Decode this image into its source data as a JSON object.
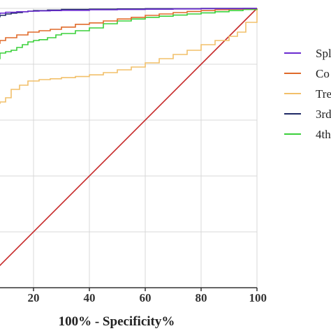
{
  "chart_data": {
    "type": "line",
    "xlabel": "100% - Specificity%",
    "ylabel": "",
    "xlim": [
      0,
      100
    ],
    "ylim": [
      0,
      100
    ],
    "x_ticks": [
      "20",
      "40",
      "60",
      "80",
      "100"
    ],
    "grid": true,
    "legend_position": "right",
    "series": [
      {
        "name": "Spl",
        "color": "#6a2bd0",
        "x": [
          0,
          2,
          4,
          6,
          8,
          10,
          14,
          18,
          22,
          26,
          30,
          40,
          50,
          60,
          70,
          80,
          90,
          95,
          100
        ],
        "y": [
          96,
          97,
          97.5,
          98,
          98.3,
          98.6,
          98.8,
          99,
          99.1,
          99.2,
          99.3,
          99.5,
          99.6,
          99.7,
          99.8,
          99.9,
          99.9,
          100,
          100
        ]
      },
      {
        "name": "Co",
        "color": "#e06a2a",
        "x": [
          0,
          2,
          4,
          6,
          8,
          10,
          14,
          18,
          22,
          26,
          30,
          35,
          40,
          45,
          50,
          55,
          60,
          65,
          70,
          75,
          80,
          85,
          90,
          95,
          100
        ],
        "y": [
          84,
          85.5,
          86.5,
          87.5,
          88.5,
          89.5,
          90.5,
          91.5,
          92,
          92.5,
          93.3,
          94.3,
          94.8,
          95.5,
          96.2,
          96.8,
          97.5,
          98,
          98.5,
          98.9,
          99.2,
          99.5,
          99.7,
          99.9,
          100
        ]
      },
      {
        "name": "Tre",
        "color": "#f2c06a",
        "x": [
          0,
          2,
          4,
          6,
          8,
          10,
          12,
          15,
          18,
          22,
          26,
          30,
          35,
          40,
          45,
          50,
          55,
          60,
          65,
          70,
          75,
          80,
          85,
          90,
          93,
          96,
          100
        ],
        "y": [
          64,
          65,
          65.5,
          66,
          66.5,
          68,
          71,
          72.5,
          74,
          74.5,
          74.8,
          75.2,
          75.6,
          76.2,
          77,
          78,
          79,
          80.5,
          82,
          83.5,
          85,
          87,
          88.5,
          90,
          91.5,
          95,
          100
        ]
      },
      {
        "name": "3rd",
        "color": "#1f2a66",
        "x": [
          0,
          2,
          4,
          6,
          8,
          10,
          12,
          14,
          16,
          18,
          20,
          25,
          30,
          40,
          50,
          60,
          70,
          80,
          90,
          100
        ],
        "y": [
          94,
          95,
          96,
          97,
          97.5,
          98,
          98.3,
          98.5,
          98.8,
          99,
          99.2,
          99.4,
          99.6,
          99.7,
          99.8,
          99.9,
          99.9,
          100,
          100,
          100
        ]
      },
      {
        "name": "4th",
        "color": "#3ad03a",
        "x": [
          0,
          2,
          3,
          4,
          5,
          6,
          8,
          10,
          12,
          14,
          16,
          18,
          20,
          22,
          25,
          28,
          30,
          35,
          40,
          45,
          50,
          55,
          60,
          65,
          70,
          75,
          80,
          85,
          90,
          95,
          100
        ],
        "y": [
          69,
          71,
          74,
          77,
          80,
          82,
          84,
          84.5,
          85,
          86,
          87,
          88,
          88.5,
          88.8,
          89.5,
          90.5,
          91,
          92,
          93,
          94.5,
          95.5,
          96.2,
          96.8,
          97.2,
          97.6,
          98,
          98.4,
          98.8,
          99.2,
          99.6,
          100
        ]
      },
      {
        "name": "",
        "color": "#c62828",
        "x": [
          0,
          100
        ],
        "y": [
          0,
          100
        ]
      }
    ]
  }
}
